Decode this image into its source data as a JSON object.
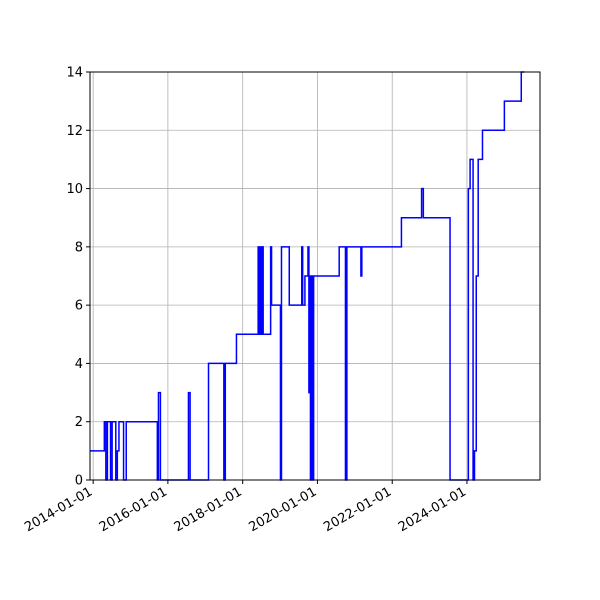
{
  "chart_data": {
    "type": "line",
    "title": "",
    "xlabel": "",
    "ylabel": "",
    "x_axis_type": "date",
    "xlim": [
      "2013-12-01",
      "2025-12-15"
    ],
    "ylim": [
      0,
      14
    ],
    "grid": true,
    "line_style": "steps-post",
    "x_ticks": [
      "2014-01-01",
      "2016-01-01",
      "2018-01-01",
      "2020-01-01",
      "2022-01-01",
      "2024-01-01"
    ],
    "y_ticks": [
      0,
      2,
      4,
      6,
      8,
      10,
      12,
      14
    ],
    "colors": {
      "line": "#0000ff",
      "grid": "#b0b0b0"
    },
    "series": [
      {
        "x": [
          "2013-12-01",
          "2014-04-20",
          "2014-05-05",
          "2014-05-20",
          "2014-06-20",
          "2014-07-05",
          "2014-08-10",
          "2014-08-25",
          "2014-09-10",
          "2014-10-05",
          "2014-10-25",
          "2014-11-20",
          "2014-12-05",
          "2015-09-20",
          "2015-10-01",
          "2015-10-20",
          "2016-07-20",
          "2016-08-05",
          "2017-02-01",
          "2017-07-01",
          "2017-07-15",
          "2017-10-10",
          "2017-11-01",
          "2018-01-01",
          "2018-06-01",
          "2018-06-10",
          "2018-06-20",
          "2018-07-01",
          "2018-07-10",
          "2018-07-20",
          "2018-10-01",
          "2018-10-10",
          "2019-01-05",
          "2019-01-15",
          "2019-04-01",
          "2019-08-01",
          "2019-08-10",
          "2019-09-01",
          "2019-10-01",
          "2019-10-10",
          "2019-10-15",
          "2019-10-25",
          "2019-11-05",
          "2019-11-15",
          "2019-11-25",
          "2019-12-05",
          "2020-01-01",
          "2020-01-15",
          "2020-08-01",
          "2020-10-01",
          "2020-10-15",
          "2020-11-05",
          "2021-03-01",
          "2021-03-10",
          "2021-03-20",
          "2022-04-01",
          "2022-06-01",
          "2022-10-15",
          "2022-11-01",
          "2023-07-20",
          "2024-01-15",
          "2024-02-01",
          "2024-03-01",
          "2024-03-15",
          "2024-04-01",
          "2024-04-20",
          "2024-05-01",
          "2024-05-15",
          "2024-06-01",
          "2024-08-01",
          "2025-01-01",
          "2025-06-15",
          "2025-07-15"
        ],
        "y": [
          1,
          2,
          0,
          2,
          0,
          2,
          0,
          1,
          2,
          2,
          0,
          2,
          2,
          0,
          3,
          0,
          3,
          0,
          4,
          0,
          4,
          4,
          5,
          5,
          8,
          5,
          8,
          5,
          8,
          5,
          8,
          6,
          0,
          8,
          6,
          8,
          6,
          7,
          8,
          3,
          7,
          0,
          7,
          0,
          7,
          7,
          7,
          7,
          8,
          0,
          8,
          8,
          7,
          8,
          8,
          9,
          9,
          10,
          9,
          0,
          10,
          11,
          0,
          1,
          7,
          11,
          11,
          11,
          12,
          12,
          13,
          14,
          14
        ]
      }
    ]
  }
}
